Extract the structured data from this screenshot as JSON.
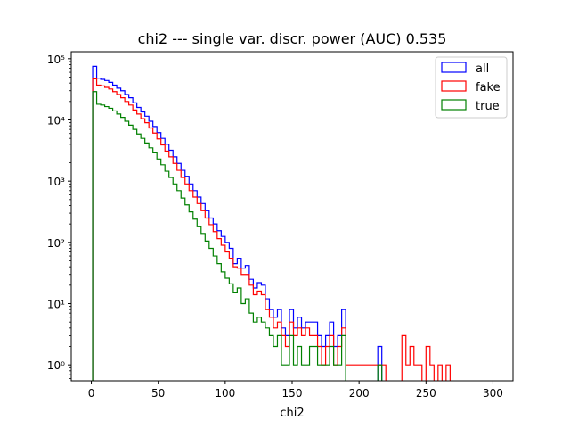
{
  "chart_data": {
    "type": "histogram-step",
    "title": "chi2 --- single var. discr. power (AUC) 0.535",
    "xlabel": "chi2",
    "ylabel": "",
    "xlim": [
      -15,
      315
    ],
    "ylim": [
      0.55,
      130000
    ],
    "yscale": "log",
    "grid": false,
    "legend_position": "top-right",
    "x_ticks": [
      0,
      50,
      100,
      150,
      200,
      250,
      300
    ],
    "x_tick_labels": [
      "0",
      "50",
      "100",
      "150",
      "200",
      "250",
      "300"
    ],
    "y_ticks": [
      1,
      10,
      100,
      1000,
      10000,
      100000
    ],
    "y_tick_labels": [
      "10⁰",
      "10¹",
      "10²",
      "10³",
      "10⁴",
      "10⁵"
    ],
    "bin_edges": [
      1,
      4,
      7,
      10,
      13,
      16,
      19,
      22,
      25,
      28,
      31,
      34,
      37,
      40,
      43,
      46,
      49,
      52,
      55,
      58,
      61,
      64,
      67,
      70,
      73,
      76,
      79,
      82,
      85,
      88,
      91,
      94,
      97,
      100,
      103,
      106,
      109,
      112,
      115,
      118,
      121,
      124,
      127,
      130,
      133,
      136,
      139,
      142,
      145,
      148,
      151,
      154,
      157,
      160,
      163,
      166,
      169,
      172,
      175,
      178,
      181,
      184,
      187,
      190,
      193,
      196,
      199,
      202,
      205,
      208,
      211,
      214,
      217,
      220,
      223,
      226,
      229,
      232,
      235,
      238,
      241,
      244,
      247,
      250,
      253,
      256,
      259,
      262,
      265,
      268
    ],
    "series": [
      {
        "name": "all",
        "color": "#0000ff",
        "values": [
          75000,
          48000,
          46000,
          44000,
          41000,
          37000,
          33000,
          30000,
          26000,
          23000,
          19000,
          16000,
          13500,
          11500,
          9500,
          7800,
          6200,
          5000,
          4000,
          3200,
          2500,
          1950,
          1500,
          1200,
          900,
          700,
          550,
          430,
          330,
          250,
          200,
          155,
          125,
          100,
          80,
          45,
          55,
          38,
          42,
          25,
          18,
          22,
          20,
          12,
          8,
          6,
          8,
          4,
          3,
          8,
          4,
          6,
          4,
          5,
          5,
          5,
          3,
          2,
          3,
          5,
          2,
          3,
          8,
          0,
          0,
          0,
          0,
          0,
          0,
          0,
          0,
          2,
          0,
          0,
          0,
          0,
          0,
          0,
          0,
          0,
          0,
          0,
          0,
          0,
          0,
          0,
          0,
          0,
          0
        ]
      },
      {
        "name": "fake",
        "color": "#ff0000",
        "values": [
          47000,
          37000,
          36000,
          34000,
          32000,
          29000,
          26000,
          23000,
          20000,
          17500,
          14500,
          12500,
          10500,
          9000,
          7400,
          6100,
          4900,
          3900,
          3100,
          2500,
          1950,
          1500,
          1150,
          900,
          700,
          550,
          430,
          330,
          250,
          195,
          150,
          115,
          90,
          70,
          55,
          40,
          38,
          30,
          30,
          20,
          14,
          16,
          14,
          8,
          6,
          4,
          5,
          3,
          2,
          5,
          3,
          4,
          3,
          4,
          3,
          3,
          2,
          1,
          2,
          3,
          1,
          2,
          4,
          1,
          1,
          1,
          1,
          1,
          1,
          1,
          1,
          1,
          1,
          0,
          0,
          0,
          0,
          3,
          1,
          2,
          1,
          1,
          0,
          2,
          1,
          0,
          1,
          0,
          1
        ]
      },
      {
        "name": "true",
        "color": "#008000",
        "values": [
          29000,
          18000,
          17500,
          16500,
          15500,
          14000,
          12500,
          11000,
          9500,
          8200,
          7000,
          5900,
          5000,
          4200,
          3500,
          2900,
          2300,
          1850,
          1450,
          1150,
          900,
          700,
          530,
          410,
          315,
          240,
          180,
          140,
          105,
          80,
          60,
          45,
          33,
          26,
          21,
          15,
          18,
          10,
          12,
          7,
          5,
          6,
          5,
          4,
          3,
          2,
          3,
          1,
          1,
          3,
          1,
          2,
          1,
          1,
          2,
          2,
          1,
          1,
          1,
          2,
          1,
          1,
          3,
          0,
          0,
          0,
          0,
          0,
          0,
          0,
          0,
          1,
          0,
          0,
          0,
          0,
          0,
          0,
          0,
          0,
          0,
          0,
          0,
          0,
          0,
          0,
          0,
          0,
          0
        ]
      }
    ]
  }
}
